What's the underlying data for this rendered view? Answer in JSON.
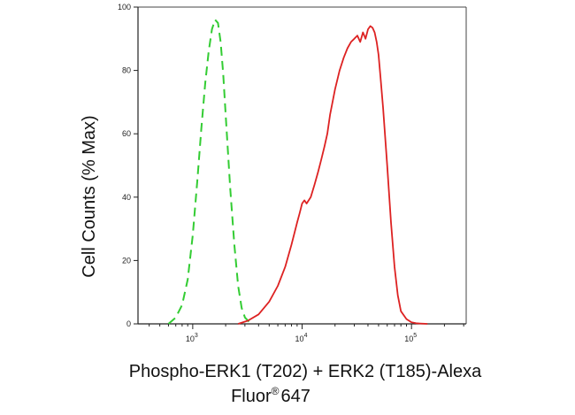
{
  "chart_data": {
    "type": "area",
    "ylabel": "Cell Counts (% Max)",
    "xlabel_line1": "Phospho-ERK1 (T202) + ERK2 (T185)-Alexa",
    "xlabel_line2_main": "Fluor",
    "xlabel_line2_reg": "®",
    "xlabel_line2_rest": "647",
    "xscale": "log",
    "xlim": [
      316,
      316228
    ],
    "ylim": [
      0,
      100
    ],
    "y_ticks": [
      0,
      20,
      40,
      60,
      80,
      100
    ],
    "y_tick_labels": [
      "0",
      "20",
      "40",
      "60",
      "80",
      "100"
    ],
    "x_ticks": [
      1000,
      10000,
      100000
    ],
    "x_tick_labels": [
      {
        "base": "10",
        "exp": "3"
      },
      {
        "base": "10",
        "exp": "4"
      },
      {
        "base": "10",
        "exp": "5"
      }
    ],
    "grid": false,
    "series": [
      {
        "style": "dashed",
        "color": "#33cc33",
        "x": [
          600,
          700,
          800,
          900,
          1000,
          1100,
          1200,
          1300,
          1400,
          1500,
          1600,
          1700,
          1800,
          1900,
          2000,
          2200,
          2400,
          2600,
          2800,
          3000,
          3300,
          3600
        ],
        "y": [
          0,
          2,
          6,
          14,
          28,
          45,
          62,
          76,
          86,
          93,
          96,
          95,
          89,
          79,
          66,
          43,
          25,
          12,
          5,
          2,
          0.5,
          0
        ]
      },
      {
        "style": "solid",
        "color": "#dd2222",
        "x": [
          2600,
          3200,
          4000,
          5000,
          6000,
          7000,
          8000,
          9000,
          9500,
          10000,
          10500,
          11000,
          12000,
          13000,
          14000,
          15000,
          16000,
          17000,
          18000,
          20000,
          22000,
          24000,
          26000,
          28000,
          30000,
          32000,
          34000,
          36000,
          38000,
          40000,
          42000,
          44000,
          46000,
          48000,
          50000,
          52000,
          55000,
          60000,
          65000,
          70000,
          75000,
          80000,
          90000,
          100000,
          110000,
          120000,
          140000
        ],
        "y": [
          0,
          1,
          3,
          7,
          12,
          18,
          25,
          32,
          35,
          38,
          39,
          38,
          40,
          44,
          48,
          52,
          56,
          60,
          66,
          74,
          80,
          84,
          87,
          89,
          90,
          91,
          89,
          92,
          90,
          93,
          94,
          93.5,
          92,
          89,
          85,
          78,
          68,
          50,
          32,
          18,
          9,
          4,
          1.5,
          0.5,
          0.2,
          0.1,
          0
        ]
      }
    ]
  }
}
